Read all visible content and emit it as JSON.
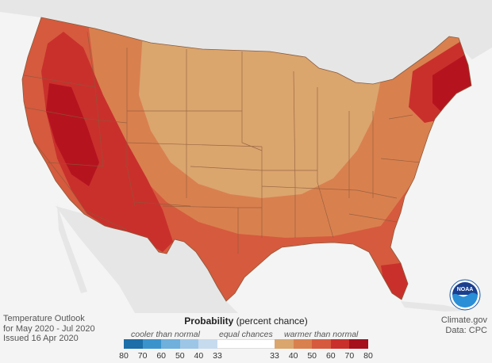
{
  "title": {
    "line1": "Temperature Outlook",
    "line2": "for May 2020 - Jul 2020",
    "line3": "Issued 16 Apr 2020"
  },
  "source": {
    "line1": "Climate.gov",
    "line2": "Data: CPC"
  },
  "legend": {
    "title_bold": "Probability",
    "title_rest": " (percent chance)",
    "cooler_label": "cooler than normal",
    "equal_label": "equal chances",
    "warmer_label": "warmer than normal",
    "cool_ticks": [
      "80",
      "70",
      "60",
      "50",
      "40",
      "33"
    ],
    "warm_ticks": [
      "33",
      "40",
      "50",
      "60",
      "70",
      "80"
    ],
    "cool_colors": [
      "#1c6fa8",
      "#3b93cc",
      "#6fb0dc",
      "#9dc6e6",
      "#c7dbee"
    ],
    "equal_color": "#ffffff",
    "warm_colors": [
      "#dba56e",
      "#d9804f",
      "#d65a3e",
      "#c9302c",
      "#a5101c"
    ]
  },
  "logo": {
    "text": "NOAA",
    "icon": "noaa-logo-icon"
  }
}
